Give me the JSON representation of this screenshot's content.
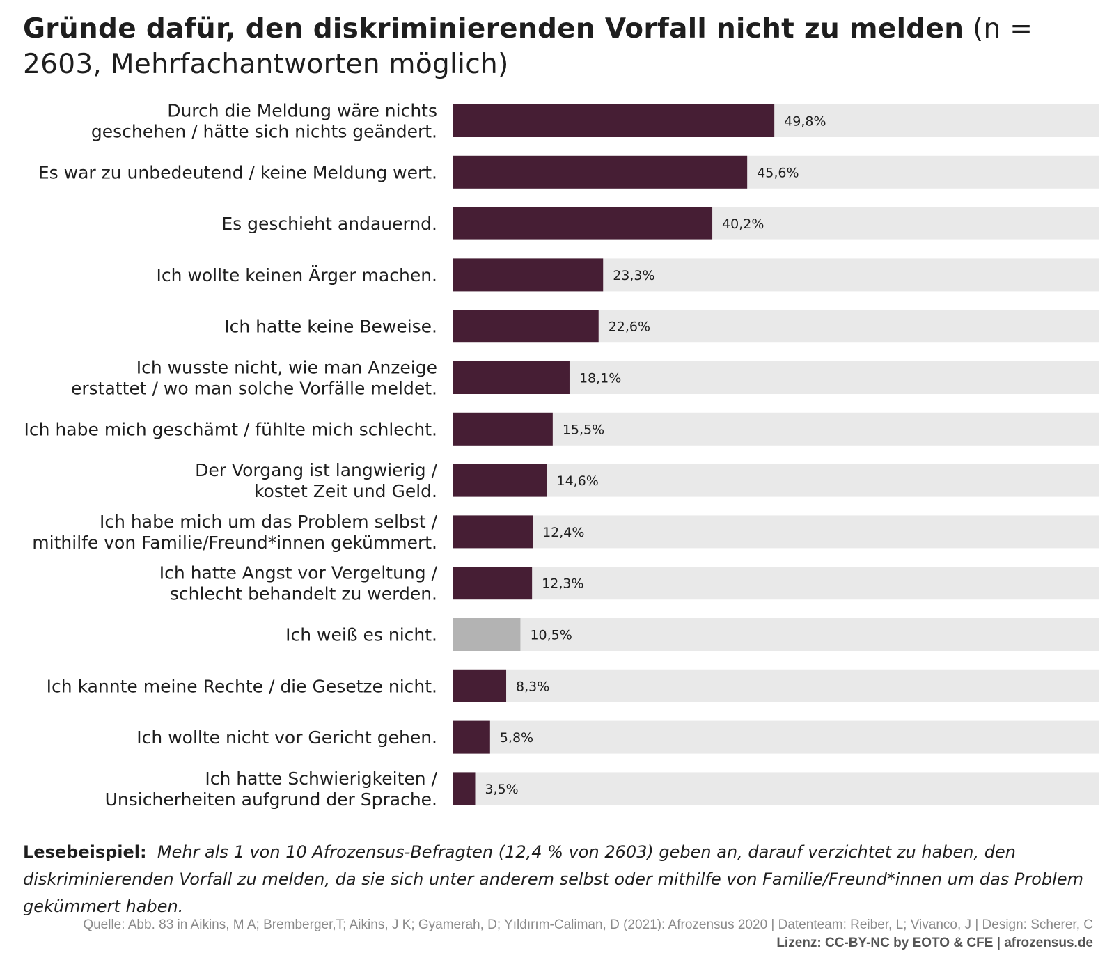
{
  "title": {
    "bold": "Gründe dafür, den diskriminierenden Vorfall nicht zu melden",
    "normal": "(n = 2603, Mehrfachantworten möglich)"
  },
  "chart_data": {
    "type": "bar",
    "orientation": "horizontal",
    "xlim": [
      0,
      100
    ],
    "grid": false,
    "categories": [
      [
        "Durch die Meldung wäre nichts",
        "geschehen / hätte sich nichts geändert."
      ],
      [
        "Es war zu unbedeutend / keine Meldung wert."
      ],
      [
        "Es geschieht andauernd."
      ],
      [
        "Ich wollte keinen Ärger machen."
      ],
      [
        "Ich hatte keine Beweise."
      ],
      [
        "Ich wusste nicht, wie man Anzeige",
        "erstattet / wo man solche Vorfälle meldet."
      ],
      [
        "Ich habe mich geschämt / fühlte mich schlecht."
      ],
      [
        "Der Vorgang ist langwierig /",
        "kostet Zeit und Geld."
      ],
      [
        "Ich habe mich um das Problem selbst /",
        "mithilfe von Familie/Freund*innen gekümmert."
      ],
      [
        "Ich hatte Angst vor Vergeltung /",
        "schlecht behandelt zu werden."
      ],
      [
        "Ich weiß es nicht."
      ],
      [
        "Ich kannte meine Rechte / die Gesetze nicht."
      ],
      [
        "Ich wollte nicht vor Gericht gehen."
      ],
      [
        "Ich hatte Schwierigkeiten /",
        "Unsicherheiten aufgrund der Sprache."
      ]
    ],
    "values": [
      49.8,
      45.6,
      40.2,
      23.3,
      22.6,
      18.1,
      15.5,
      14.6,
      12.4,
      12.3,
      10.5,
      8.3,
      5.8,
      3.5
    ],
    "value_labels": [
      "49,8%",
      "45,6%",
      "40,2%",
      "23,3%",
      "22,6%",
      "18,1%",
      "15,5%",
      "14,6%",
      "12,4%",
      "12,3%",
      "10,5%",
      "8,3%",
      "5,8%",
      "3,5%"
    ],
    "highlight": [
      false,
      false,
      false,
      false,
      false,
      false,
      false,
      false,
      false,
      false,
      true,
      false,
      false,
      false
    ],
    "colors": {
      "bar": "#461e34",
      "highlight_bar": "#b3b3b3",
      "track": "#e9e9e9"
    }
  },
  "example": {
    "lead": "Lesebeispiel:",
    "text": "Mehr als 1 von 10 Afrozensus-Befragten (12,4 % von 2603) geben an, darauf verzichtet zu haben, den diskriminierenden Vorfall zu melden, da sie sich unter anderem selbst oder mithilfe von Familie/Freund*innen um das Problem gekümmert haben."
  },
  "source": "Quelle: Abb. 83 in Aikins, M A; Bremberger,T; Aikins, J K; Gyamerah, D; Yıldırım-Caliman, D (2021): Afrozensus 2020 | Datenteam: Reiber, L; Vivanco, J | Design: Scherer, C",
  "license": "Lizenz: CC-BY-NC by EOTO & CFE | afrozensus.de"
}
